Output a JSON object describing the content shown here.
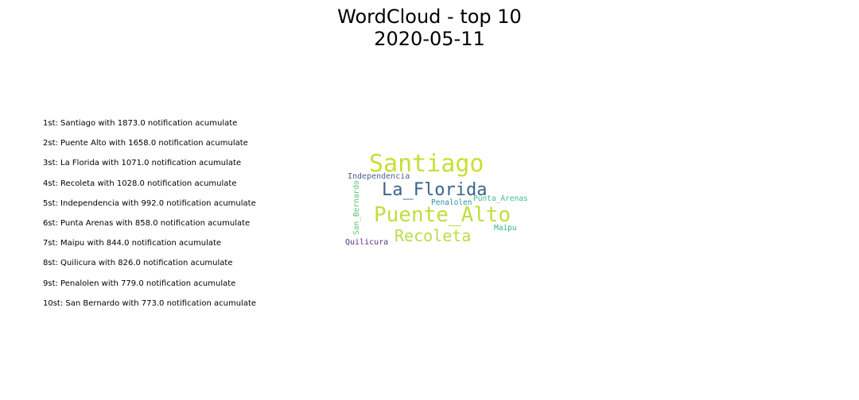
{
  "title": {
    "line1": "WordCloud - top 10",
    "line2": "2020-05-11"
  },
  "ranking": [
    "1st: Santiago with 1873.0 notification acumulate",
    "2st: Puente Alto with 1658.0 notification acumulate",
    "3st: La Florida with 1071.0 notification acumulate",
    "4st: Recoleta with 1028.0 notification acumulate",
    "5st: Independencia with 992.0 notification acumulate",
    "6st: Punta Arenas with 858.0 notification acumulate",
    "7st: Maipu with 844.0 notification acumulate",
    "8st: Quilicura with 826.0 notification acumulate",
    "9st: Penalolen with 779.0 notification acumulate",
    "10st: San Bernardo with 773.0 notification acumulate"
  ],
  "chart_data": {
    "type": "wordcloud",
    "title": "WordCloud - top 10\n2020-05-11",
    "words": [
      {
        "text": "Santiago",
        "value": 1873.0,
        "color": "#c8df33",
        "orientation": "horizontal"
      },
      {
        "text": "Puente_Alto",
        "value": 1658.0,
        "color": "#bddf3c",
        "orientation": "horizontal"
      },
      {
        "text": "La_Florida",
        "value": 1071.0,
        "color": "#3b648b",
        "orientation": "horizontal"
      },
      {
        "text": "Recoleta",
        "value": 1028.0,
        "color": "#b9de45",
        "orientation": "horizontal"
      },
      {
        "text": "Independencia",
        "value": 992.0,
        "color": "#4d5e8e",
        "orientation": "horizontal"
      },
      {
        "text": "Punta_Arenas",
        "value": 858.0,
        "color": "#43bb86",
        "orientation": "horizontal"
      },
      {
        "text": "Maipu",
        "value": 844.0,
        "color": "#31b38e",
        "orientation": "horizontal"
      },
      {
        "text": "Quilicura",
        "value": 826.0,
        "color": "#5a2f83",
        "orientation": "horizontal"
      },
      {
        "text": "Penalolen",
        "value": 779.0,
        "color": "#2e93a2",
        "orientation": "horizontal"
      },
      {
        "text": "San_Bernardo",
        "value": 773.0,
        "color": "#5bc76e",
        "orientation": "vertical"
      }
    ]
  }
}
